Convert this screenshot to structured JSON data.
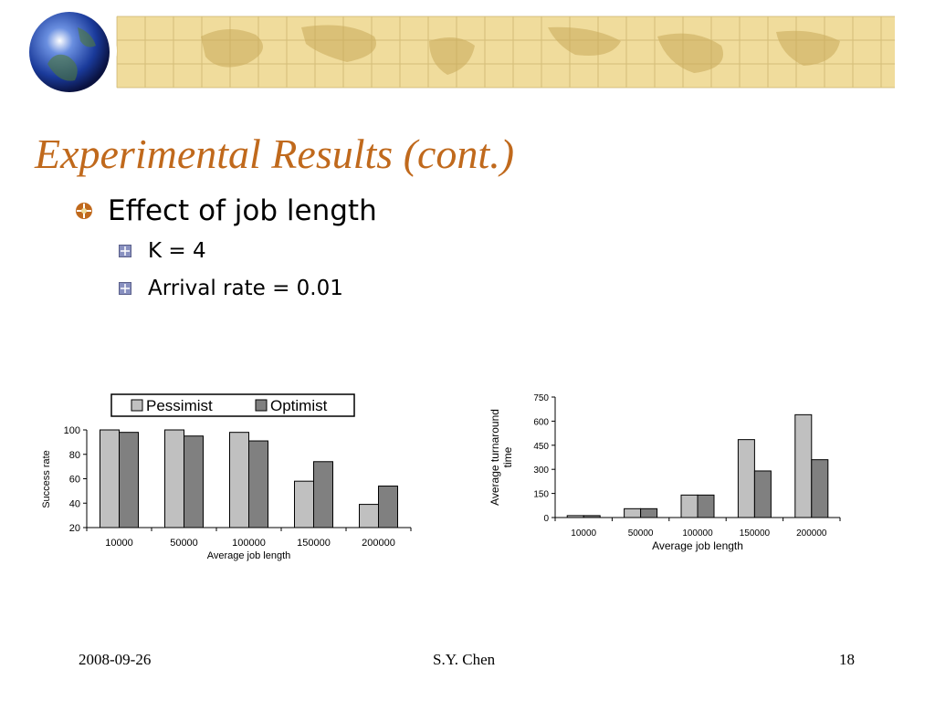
{
  "slide": {
    "title": "Experimental Results (cont.)",
    "bullets": [
      {
        "text": "Effect of job length",
        "level": 1
      },
      {
        "text": "K = 4",
        "level": 2
      },
      {
        "text": "Arrival rate = 0.01",
        "level": 2
      }
    ],
    "footer": {
      "date": "2008-09-26",
      "author": "S.Y. Chen",
      "page": "18"
    },
    "colors": {
      "title": "#c0691c",
      "banner": "#f0dc9c",
      "pessimist": "#c0c0c0",
      "optimist": "#808080"
    }
  },
  "chart_data": [
    {
      "type": "bar",
      "categories": [
        "10000",
        "50000",
        "100000",
        "150000",
        "200000"
      ],
      "series": [
        {
          "name": "Pessimist",
          "values": [
            100,
            100,
            98,
            58,
            39
          ]
        },
        {
          "name": "Optimist",
          "values": [
            98,
            95,
            91,
            74,
            54
          ]
        }
      ],
      "xlabel": "Average job length",
      "ylabel": "Success rate",
      "ylim": [
        20,
        100
      ],
      "yticks": [
        "20",
        "40",
        "60",
        "80",
        "100"
      ],
      "legend": "top",
      "grid": false
    },
    {
      "type": "bar",
      "categories": [
        "10000",
        "50000",
        "100000",
        "150000",
        "200000"
      ],
      "series": [
        {
          "name": "Pessimist",
          "values": [
            12,
            55,
            140,
            485,
            640
          ]
        },
        {
          "name": "Optimist",
          "values": [
            12,
            55,
            140,
            290,
            360
          ]
        }
      ],
      "xlabel": "Average job length",
      "ylabel": "Average turnaround time",
      "ylim": [
        0,
        750
      ],
      "yticks": [
        "0",
        "150",
        "300",
        "450",
        "600",
        "750"
      ],
      "legend": "none",
      "grid": false
    }
  ]
}
